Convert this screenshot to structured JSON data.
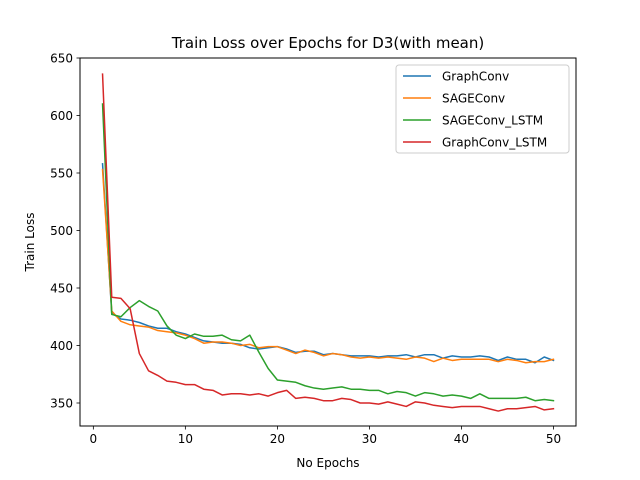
{
  "chart_data": {
    "type": "line",
    "title": "Train Loss over Epochs for D3(with mean)",
    "xlabel": "No Epochs",
    "ylabel": "Train Loss",
    "xlim": [
      -1.45,
      52.45
    ],
    "ylim": [
      330,
      650
    ],
    "xticks": [
      0,
      10,
      20,
      30,
      40,
      50
    ],
    "yticks": [
      350,
      400,
      450,
      500,
      550,
      600,
      650
    ],
    "grid": false,
    "legend_position": "top-right",
    "x": [
      1,
      2,
      3,
      4,
      5,
      6,
      7,
      8,
      9,
      10,
      11,
      12,
      13,
      14,
      15,
      16,
      17,
      18,
      19,
      20,
      21,
      22,
      23,
      24,
      25,
      26,
      27,
      28,
      29,
      30,
      31,
      32,
      33,
      34,
      35,
      36,
      37,
      38,
      39,
      40,
      41,
      42,
      43,
      44,
      45,
      46,
      47,
      48,
      49,
      50
    ],
    "series": [
      {
        "name": "GraphConv",
        "color": "#1f77b4",
        "values": [
          558,
          428,
          423,
          422,
          420,
          417,
          415,
          415,
          412,
          410,
          407,
          404,
          403,
          402,
          402,
          401,
          398,
          397,
          398,
          399,
          397,
          394,
          395,
          395,
          392,
          393,
          392,
          391,
          391,
          391,
          390,
          391,
          391,
          392,
          390,
          392,
          392,
          389,
          391,
          390,
          390,
          391,
          390,
          387,
          390,
          388,
          388,
          385,
          390,
          387
        ]
      },
      {
        "name": "SAGEConv",
        "color": "#ff7f0e",
        "values": [
          553,
          430,
          421,
          418,
          417,
          416,
          413,
          412,
          411,
          409,
          406,
          402,
          403,
          403,
          402,
          400,
          401,
          398,
          399,
          399,
          396,
          393,
          396,
          394,
          391,
          393,
          392,
          390,
          389,
          390,
          389,
          390,
          389,
          388,
          390,
          389,
          386,
          389,
          387,
          388,
          388,
          388,
          388,
          386,
          388,
          387,
          385,
          386,
          386,
          388
        ]
      },
      {
        "name": "SAGEConv_LSTM",
        "color": "#2ca02c",
        "values": [
          610,
          427,
          425,
          433,
          439,
          434,
          430,
          417,
          409,
          406,
          410,
          408,
          408,
          409,
          405,
          404,
          409,
          394,
          380,
          370,
          369,
          368,
          365,
          363,
          362,
          363,
          364,
          362,
          362,
          361,
          361,
          358,
          360,
          359,
          356,
          359,
          358,
          356,
          357,
          356,
          354,
          358,
          354,
          354,
          354,
          354,
          355,
          352,
          353,
          352
        ]
      },
      {
        "name": "GraphConv_LSTM",
        "color": "#d62728",
        "values": [
          636,
          442,
          441,
          432,
          393,
          378,
          374,
          369,
          368,
          366,
          366,
          362,
          361,
          357,
          358,
          358,
          357,
          358,
          356,
          359,
          361,
          354,
          355,
          354,
          352,
          352,
          354,
          353,
          350,
          350,
          349,
          351,
          349,
          347,
          351,
          350,
          348,
          347,
          346,
          347,
          347,
          347,
          345,
          343,
          345,
          345,
          346,
          347,
          344,
          345
        ]
      }
    ]
  }
}
